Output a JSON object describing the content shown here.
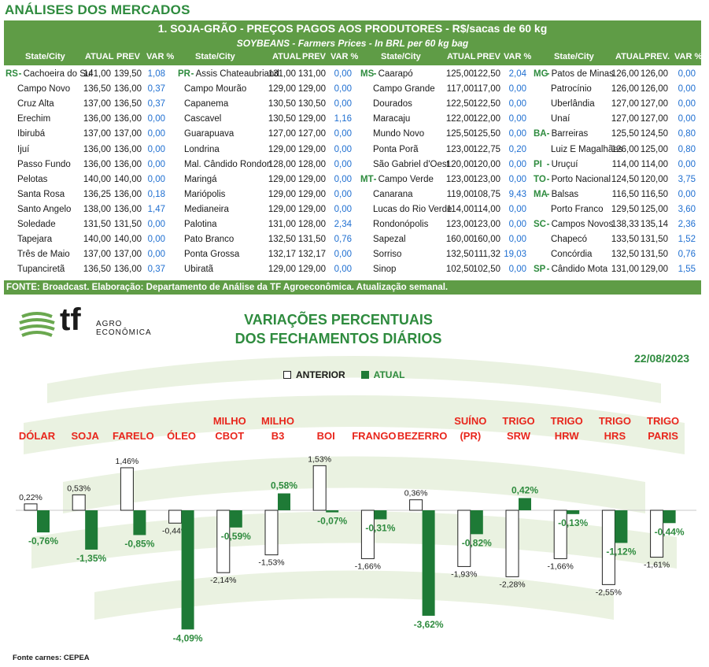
{
  "header": {
    "main_title": "ANÁLISES DOS MERCADOS",
    "table_title": "1. SOJA-GRÃO - PREÇOS PAGOS AOS PRODUTORES - R$/sacas de 60 kg",
    "table_subtitle": "SOYBEANS - Farmers Prices - In BRL per 60 kg bag"
  },
  "table": {
    "column_headers": [
      "State/City",
      "ATUAL",
      "PREV",
      "VAR %",
      "State/City",
      "ATUAL",
      "PREV",
      "VAR %",
      "State/City",
      "ATUAL",
      "PREV",
      "VAR %",
      "State/City",
      "ATUAL",
      "PREV.",
      "VAR %"
    ],
    "blocks": [
      [
        {
          "state": "RS",
          "city": "Cachoeira do Sul",
          "atual": "141,00",
          "prev": "139,50",
          "var": "1,08"
        },
        {
          "state": "",
          "city": "Campo Novo",
          "atual": "136,50",
          "prev": "136,00",
          "var": "0,37"
        },
        {
          "state": "",
          "city": "Cruz Alta",
          "atual": "137,00",
          "prev": "136,50",
          "var": "0,37"
        },
        {
          "state": "",
          "city": "Erechim",
          "atual": "136,00",
          "prev": "136,00",
          "var": "0,00"
        },
        {
          "state": "",
          "city": "Ibirubá",
          "atual": "137,00",
          "prev": "137,00",
          "var": "0,00"
        },
        {
          "state": "",
          "city": "Ijuí",
          "atual": "136,00",
          "prev": "136,00",
          "var": "0,00"
        },
        {
          "state": "",
          "city": "Passo Fundo",
          "atual": "136,00",
          "prev": "136,00",
          "var": "0,00"
        },
        {
          "state": "",
          "city": "Pelotas",
          "atual": "140,00",
          "prev": "140,00",
          "var": "0,00"
        },
        {
          "state": "",
          "city": "Santa Rosa",
          "atual": "136,25",
          "prev": "136,00",
          "var": "0,18"
        },
        {
          "state": "",
          "city": "Santo Angelo",
          "atual": "138,00",
          "prev": "136,00",
          "var": "1,47"
        },
        {
          "state": "",
          "city": "Soledade",
          "atual": "131,50",
          "prev": "131,50",
          "var": "0,00"
        },
        {
          "state": "",
          "city": "Tapejara",
          "atual": "140,00",
          "prev": "140,00",
          "var": "0,00"
        },
        {
          "state": "",
          "city": "Três de Maio",
          "atual": "137,00",
          "prev": "137,00",
          "var": "0,00"
        },
        {
          "state": "",
          "city": "Tupanciretã",
          "atual": "136,50",
          "prev": "136,00",
          "var": "0,37"
        }
      ],
      [
        {
          "state": "PR",
          "city": "Assis Chateaubriand",
          "atual": "131,00",
          "prev": "131,00",
          "var": "0,00"
        },
        {
          "state": "",
          "city": "Campo Mourão",
          "atual": "129,00",
          "prev": "129,00",
          "var": "0,00"
        },
        {
          "state": "",
          "city": "Capanema",
          "atual": "130,50",
          "prev": "130,50",
          "var": "0,00"
        },
        {
          "state": "",
          "city": "Cascavel",
          "atual": "130,50",
          "prev": "129,00",
          "var": "1,16"
        },
        {
          "state": "",
          "city": "Guarapuava",
          "atual": "127,00",
          "prev": "127,00",
          "var": "0,00"
        },
        {
          "state": "",
          "city": "Londrina",
          "atual": "129,00",
          "prev": "129,00",
          "var": "0,00"
        },
        {
          "state": "",
          "city": "Mal. Cândido Rondon",
          "atual": "128,00",
          "prev": "128,00",
          "var": "0,00"
        },
        {
          "state": "",
          "city": "Maringá",
          "atual": "129,00",
          "prev": "129,00",
          "var": "0,00"
        },
        {
          "state": "",
          "city": "Mariópolis",
          "atual": "129,00",
          "prev": "129,00",
          "var": "0,00"
        },
        {
          "state": "",
          "city": "Medianeira",
          "atual": "129,00",
          "prev": "129,00",
          "var": "0,00"
        },
        {
          "state": "",
          "city": "Palotina",
          "atual": "131,00",
          "prev": "128,00",
          "var": "2,34"
        },
        {
          "state": "",
          "city": "Pato Branco",
          "atual": "132,50",
          "prev": "131,50",
          "var": "0,76"
        },
        {
          "state": "",
          "city": "Ponta Grossa",
          "atual": "132,17",
          "prev": "132,17",
          "var": "0,00"
        },
        {
          "state": "",
          "city": "Ubiratã",
          "atual": "129,00",
          "prev": "129,00",
          "var": "0,00"
        }
      ],
      [
        {
          "state": "MS",
          "city": "Caarapó",
          "atual": "125,00",
          "prev": "122,50",
          "var": "2,04"
        },
        {
          "state": "",
          "city": "Campo Grande",
          "atual": "117,00",
          "prev": "117,00",
          "var": "0,00"
        },
        {
          "state": "",
          "city": "Dourados",
          "atual": "122,50",
          "prev": "122,50",
          "var": "0,00"
        },
        {
          "state": "",
          "city": "Maracaju",
          "atual": "122,00",
          "prev": "122,00",
          "var": "0,00"
        },
        {
          "state": "",
          "city": "Mundo Novo",
          "atual": "125,50",
          "prev": "125,50",
          "var": "0,00"
        },
        {
          "state": "",
          "city": "Ponta Porã",
          "atual": "123,00",
          "prev": "122,75",
          "var": "0,20"
        },
        {
          "state": "",
          "city": "São Gabriel d'Oest",
          "atual": "120,00",
          "prev": "120,00",
          "var": "0,00"
        },
        {
          "state": "MT",
          "city": "Campo Verde",
          "atual": "123,00",
          "prev": "123,00",
          "var": "0,00"
        },
        {
          "state": "",
          "city": "Canarana",
          "atual": "119,00",
          "prev": "108,75",
          "var": "9,43"
        },
        {
          "state": "",
          "city": "Lucas do Rio Verde",
          "atual": "114,00",
          "prev": "114,00",
          "var": "0,00"
        },
        {
          "state": "",
          "city": "Rondonópolis",
          "atual": "123,00",
          "prev": "123,00",
          "var": "0,00"
        },
        {
          "state": "",
          "city": "Sapezal",
          "atual": "160,00",
          "prev": "160,00",
          "var": "0,00"
        },
        {
          "state": "",
          "city": "Sorriso",
          "atual": "132,50",
          "prev": "111,32",
          "var": "19,03"
        },
        {
          "state": "",
          "city": "Sinop",
          "atual": "102,50",
          "prev": "102,50",
          "var": "0,00"
        }
      ],
      [
        {
          "state": "MG",
          "city": "Patos de Minas",
          "atual": "126,00",
          "prev": "126,00",
          "var": "0,00"
        },
        {
          "state": "",
          "city": "Patrocínio",
          "atual": "126,00",
          "prev": "126,00",
          "var": "0,00"
        },
        {
          "state": "",
          "city": "Uberlândia",
          "atual": "127,00",
          "prev": "127,00",
          "var": "0,00"
        },
        {
          "state": "",
          "city": "Unaí",
          "atual": "127,00",
          "prev": "127,00",
          "var": "0,00"
        },
        {
          "state": "BA",
          "city": "Barreiras",
          "atual": "125,50",
          "prev": "124,50",
          "var": "0,80"
        },
        {
          "state": "",
          "city": "Luiz E Magalhães",
          "atual": "126,00",
          "prev": "125,00",
          "var": "0,80"
        },
        {
          "state": "PI",
          "city": "Uruçuí",
          "atual": "114,00",
          "prev": "114,00",
          "var": "0,00"
        },
        {
          "state": "TO",
          "city": "Porto Nacional",
          "atual": "124,50",
          "prev": "120,00",
          "var": "3,75"
        },
        {
          "state": "MA",
          "city": "Balsas",
          "atual": "116,50",
          "prev": "116,50",
          "var": "0,00"
        },
        {
          "state": "",
          "city": "Porto Franco",
          "atual": "129,50",
          "prev": "125,00",
          "var": "3,60"
        },
        {
          "state": "SC",
          "city": "Campos Novos",
          "atual": "138,33",
          "prev": "135,14",
          "var": "2,36"
        },
        {
          "state": "",
          "city": "Chapecó",
          "atual": "133,50",
          "prev": "131,50",
          "var": "1,52"
        },
        {
          "state": "",
          "city": "Concórdia",
          "atual": "132,50",
          "prev": "131,50",
          "var": "0,76"
        },
        {
          "state": "SP",
          "city": "Cândido Mota",
          "atual": "131,00",
          "prev": "129,00",
          "var": "1,55"
        }
      ]
    ],
    "source_note": "FONTE: Broadcast. Elaboração: Departamento de Análise da TF Agroeconômica. Atualização semanal."
  },
  "logo": {
    "brand": "tf",
    "sub1": "AGRO",
    "sub2": "ECONÔMICA"
  },
  "chart_data": {
    "type": "bar",
    "title_line1": "VARIAÇÕES PERCENTUAIS",
    "title_line2": "DOS FECHAMENTOS DIÁRIOS",
    "date": "22/08/2023",
    "categories": [
      [
        "DÓLAR"
      ],
      [
        "SOJA"
      ],
      [
        "FARELO"
      ],
      [
        "ÓLEO"
      ],
      [
        "MILHO",
        "CBOT"
      ],
      [
        "MILHO",
        "B3"
      ],
      [
        "BOI"
      ],
      [
        "FRANGO"
      ],
      [
        "BEZERRO"
      ],
      [
        "SUÍNO",
        "(PR)"
      ],
      [
        "TRIGO",
        "SRW"
      ],
      [
        "TRIGO",
        "HRW"
      ],
      [
        "TRIGO",
        "HRS"
      ],
      [
        "TRIGO",
        "PARIS"
      ]
    ],
    "series": [
      {
        "name": "ANTERIOR",
        "color": "#ffffff",
        "values": [
          0.22,
          0.53,
          1.46,
          -0.44,
          -2.14,
          -1.53,
          1.53,
          -1.66,
          0.36,
          -1.93,
          -2.28,
          -1.66,
          -2.55,
          -1.61
        ],
        "labels": [
          "0,22%",
          "0,53%",
          "1,46%",
          "-0,44%",
          "-2,14%",
          "-1,53%",
          "1,53%",
          "-1,66%",
          "0,36%",
          "-1,93%",
          "-2,28%",
          "-1,66%",
          "-2,55%",
          "-1,61%"
        ]
      },
      {
        "name": "ATUAL",
        "color": "#1e7a36",
        "values": [
          -0.76,
          -1.35,
          -0.85,
          -4.09,
          -0.59,
          0.58,
          -0.07,
          -0.31,
          -3.62,
          -0.82,
          0.42,
          -0.13,
          -1.12,
          -0.44
        ],
        "labels": [
          "-0,76%",
          "-1,35%",
          "-0,85%",
          "-4,09%",
          "-0,59%",
          "0,58%",
          "-0,07%",
          "-0,31%",
          "-3,62%",
          "-0,82%",
          "0,42%",
          "-0,13%",
          "-1,12%",
          "-0,44%"
        ]
      }
    ],
    "footnote": "Fonte carnes: CEPEA"
  }
}
